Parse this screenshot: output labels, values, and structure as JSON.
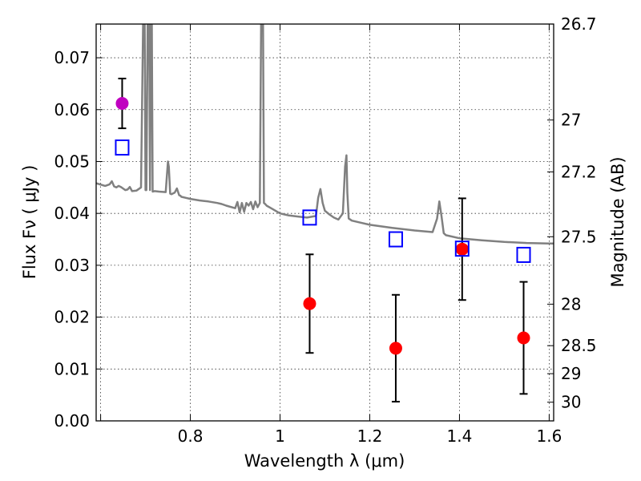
{
  "chart_data": {
    "type": "scatter",
    "title": "",
    "xlabel": "Wavelength  λ (μm)",
    "ylabel": "Flux  Fν  ( μJy )",
    "y2label": "Magnitude (AB)",
    "xlim": [
      0.59,
      1.61
    ],
    "ylim": [
      0.0,
      0.0765
    ],
    "grid": true,
    "x_ticks": [
      {
        "value": 0.6,
        "label": ""
      },
      {
        "value": 0.8,
        "label": "0.8"
      },
      {
        "value": 1.0,
        "label": "1"
      },
      {
        "value": 1.2,
        "label": "1.2"
      },
      {
        "value": 1.4,
        "label": "1.4"
      },
      {
        "value": 1.6,
        "label": "1.6"
      }
    ],
    "y_ticks": [
      {
        "value": 0.0,
        "label": "0.00"
      },
      {
        "value": 0.01,
        "label": "0.01"
      },
      {
        "value": 0.02,
        "label": "0.02"
      },
      {
        "value": 0.03,
        "label": "0.03"
      },
      {
        "value": 0.04,
        "label": "0.04"
      },
      {
        "value": 0.05,
        "label": "0.05"
      },
      {
        "value": 0.06,
        "label": "0.06"
      },
      {
        "value": 0.07,
        "label": "0.07"
      }
    ],
    "y2_ticks": [
      {
        "flux": 0.0765,
        "label": "26.7"
      },
      {
        "flux": 0.058,
        "label": "27"
      },
      {
        "flux": 0.048,
        "label": "27.2"
      },
      {
        "flux": 0.0355,
        "label": "27.5"
      },
      {
        "flux": 0.0225,
        "label": "28"
      },
      {
        "flux": 0.0145,
        "label": "28.5"
      },
      {
        "flux": 0.0091,
        "label": "29"
      },
      {
        "flux": 0.0036,
        "label": "30"
      }
    ],
    "model_spectrum": {
      "color": "#808080",
      "x": [
        0.59,
        0.61,
        0.62,
        0.625,
        0.63,
        0.635,
        0.64,
        0.645,
        0.65,
        0.655,
        0.66,
        0.665,
        0.67,
        0.68,
        0.69,
        0.695,
        0.698,
        0.7,
        0.702,
        0.705,
        0.708,
        0.71,
        0.712,
        0.714,
        0.716,
        0.72,
        0.73,
        0.745,
        0.75,
        0.752,
        0.755,
        0.758,
        0.765,
        0.77,
        0.775,
        0.778,
        0.78,
        0.79,
        0.8,
        0.82,
        0.84,
        0.86,
        0.87,
        0.88,
        0.9,
        0.905,
        0.91,
        0.915,
        0.92,
        0.925,
        0.93,
        0.935,
        0.94,
        0.945,
        0.95,
        0.955,
        0.958,
        0.96,
        0.962,
        0.964,
        0.967,
        0.97,
        0.98,
        0.99,
        1.0,
        1.01,
        1.02,
        1.04,
        1.06,
        1.08,
        1.085,
        1.09,
        1.095,
        1.1,
        1.11,
        1.12,
        1.13,
        1.14,
        1.145,
        1.148,
        1.15,
        1.153,
        1.16,
        1.18,
        1.2,
        1.25,
        1.3,
        1.34,
        1.35,
        1.355,
        1.36,
        1.365,
        1.37,
        1.4,
        1.45,
        1.5,
        1.55,
        1.6,
        1.61
      ],
      "y": [
        0.0458,
        0.0453,
        0.0456,
        0.0462,
        0.0452,
        0.045,
        0.0453,
        0.0451,
        0.0448,
        0.0445,
        0.0446,
        0.0451,
        0.0443,
        0.0444,
        0.045,
        0.079,
        0.079,
        0.0445,
        0.0445,
        0.079,
        0.079,
        0.0445,
        0.079,
        0.079,
        0.0442,
        0.0443,
        0.0442,
        0.0441,
        0.05,
        0.049,
        0.0438,
        0.0437,
        0.044,
        0.0448,
        0.0435,
        0.0434,
        0.0432,
        0.043,
        0.0428,
        0.0425,
        0.0423,
        0.042,
        0.0418,
        0.0415,
        0.041,
        0.0422,
        0.0402,
        0.042,
        0.0403,
        0.042,
        0.0415,
        0.0422,
        0.0408,
        0.0423,
        0.0412,
        0.042,
        0.079,
        0.079,
        0.079,
        0.042,
        0.0418,
        0.0415,
        0.041,
        0.0405,
        0.04,
        0.0398,
        0.0396,
        0.0394,
        0.0392,
        0.0395,
        0.043,
        0.0447,
        0.042,
        0.0405,
        0.0398,
        0.0392,
        0.0388,
        0.04,
        0.049,
        0.0512,
        0.044,
        0.039,
        0.0386,
        0.0382,
        0.0378,
        0.0372,
        0.0367,
        0.0364,
        0.039,
        0.0423,
        0.0395,
        0.0362,
        0.0358,
        0.0352,
        0.0348,
        0.0345,
        0.0343,
        0.0342,
        0.0342
      ]
    },
    "series": [
      {
        "marker": "circle",
        "color": "#c000c0",
        "points": [
          {
            "x": 0.648,
            "y": 0.0612,
            "err": 0.0048
          }
        ]
      },
      {
        "marker": "circle",
        "color": "#ff0000",
        "points": [
          {
            "x": 1.066,
            "y": 0.0226,
            "err": 0.0095
          },
          {
            "x": 1.258,
            "y": 0.014,
            "err": 0.0103
          },
          {
            "x": 1.406,
            "y": 0.0331,
            "err": 0.0098
          },
          {
            "x": 1.543,
            "y": 0.016,
            "err": 0.0108
          }
        ]
      },
      {
        "marker": "open-square",
        "color": "#0000ff",
        "points": [
          {
            "x": 0.648,
            "y": 0.0527
          },
          {
            "x": 1.066,
            "y": 0.0392
          },
          {
            "x": 1.258,
            "y": 0.035
          },
          {
            "x": 1.406,
            "y": 0.0332
          },
          {
            "x": 1.543,
            "y": 0.032
          }
        ]
      }
    ]
  }
}
